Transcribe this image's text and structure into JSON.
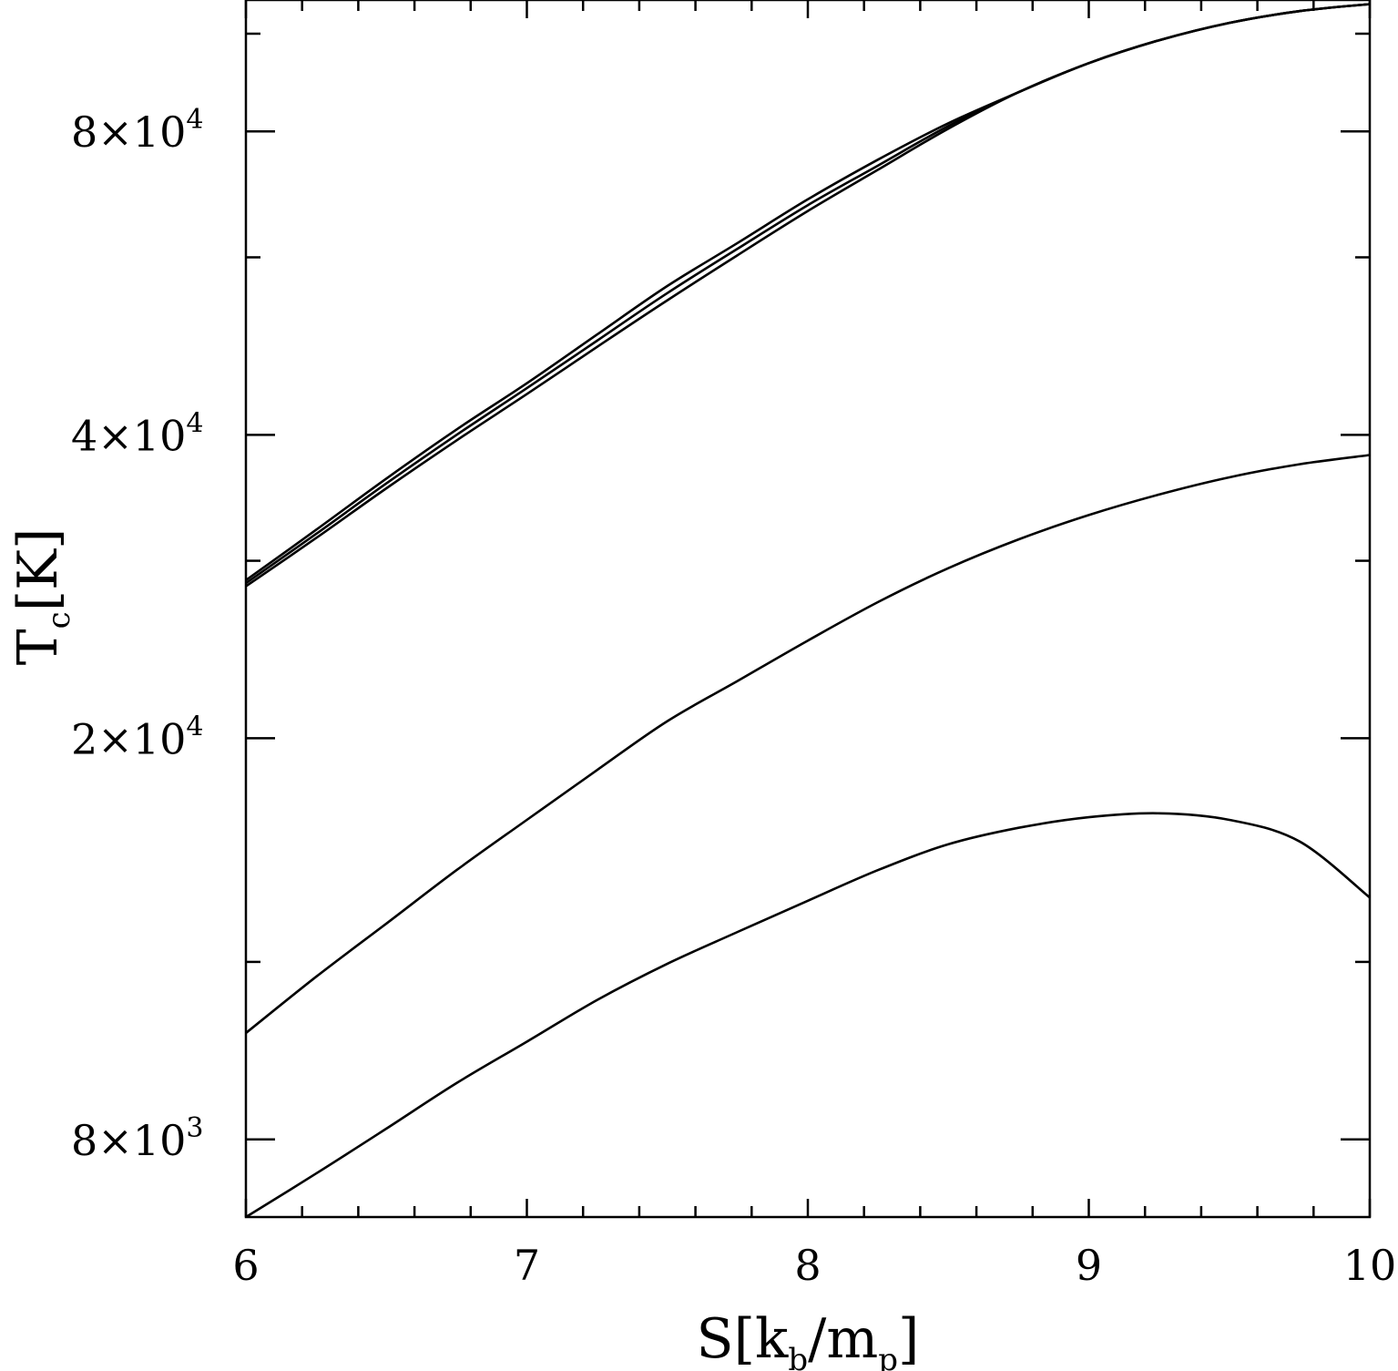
{
  "chart_data": {
    "type": "line",
    "title": "",
    "xlabel": {
      "main": "S[k",
      "sub1": "b",
      "mid": "/m",
      "sub2": "p",
      "end": "]"
    },
    "ylabel": {
      "main": "T",
      "sub": "c",
      "end": "[K]"
    },
    "xlim": [
      6,
      10
    ],
    "ylim": [
      6700,
      108000
    ],
    "yscale": "log",
    "grid": false,
    "x_tick_labels": [
      {
        "value": 6,
        "label": "6"
      },
      {
        "value": 7,
        "label": "7"
      },
      {
        "value": 8,
        "label": "8"
      },
      {
        "value": 9,
        "label": "9"
      },
      {
        "value": 10,
        "label": "10"
      }
    ],
    "x_minor_ticks": [
      6.2,
      6.4,
      6.6,
      6.8,
      7.2,
      7.4,
      7.6,
      7.8,
      8.2,
      8.4,
      8.6,
      8.8,
      9.2,
      9.4,
      9.6,
      9.8
    ],
    "y_tick_labels": [
      {
        "value": 8000,
        "base": "8×10",
        "exp": "3"
      },
      {
        "value": 20000,
        "base": "2×10",
        "exp": "4"
      },
      {
        "value": 40000,
        "base": "4×10",
        "exp": "4"
      },
      {
        "value": 80000,
        "base": "8×10",
        "exp": "4"
      }
    ],
    "y_unlabeled_ticks": [
      12000,
      30000,
      60000,
      100000
    ],
    "series": [
      {
        "x": [
          6.0,
          6.25,
          6.5,
          6.75,
          7.0,
          7.25,
          7.5,
          7.75,
          8.0,
          8.25,
          8.5,
          8.75,
          9.0,
          9.25,
          9.5,
          9.75,
          10.0
        ],
        "y": [
          28700,
          32200,
          36200,
          40500,
          45000,
          50300,
          56200,
          62000,
          68500,
          75000,
          81500,
          87500,
          93500,
          98500,
          102500,
          105300,
          107000
        ]
      },
      {
        "x": [
          6.0,
          6.25,
          6.5,
          6.75,
          7.0,
          7.25,
          7.5,
          7.75,
          8.0,
          8.25,
          8.5,
          8.75,
          9.0,
          9.25,
          9.5,
          9.75,
          10.0
        ],
        "y": [
          28500,
          31900,
          35800,
          40000,
          44500,
          49600,
          55300,
          61200,
          67600,
          74000,
          81000,
          87500,
          93500,
          98500,
          102500,
          105300,
          107000
        ]
      },
      {
        "x": [
          6.0,
          6.25,
          6.5,
          6.75,
          7.0,
          7.25,
          7.5,
          7.75,
          8.0,
          8.25,
          8.5,
          8.75,
          9.0,
          9.25,
          9.5,
          9.75,
          10.0
        ],
        "y": [
          28300,
          31600,
          35400,
          39500,
          43900,
          48900,
          54400,
          60300,
          66700,
          73300,
          80500,
          87500,
          93500,
          98500,
          102500,
          105300,
          107000
        ]
      },
      {
        "x": [
          6.0,
          6.25,
          6.5,
          6.75,
          7.0,
          7.25,
          7.5,
          7.75,
          8.0,
          8.25,
          8.5,
          8.75,
          9.0,
          9.25,
          9.5,
          9.75,
          10.0
        ],
        "y": [
          10200,
          11600,
          13100,
          14800,
          16600,
          18600,
          20800,
          22800,
          25000,
          27300,
          29500,
          31500,
          33300,
          34900,
          36300,
          37400,
          38200
        ]
      },
      {
        "x": [
          6.0,
          6.25,
          6.5,
          6.75,
          7.0,
          7.25,
          7.5,
          7.75,
          8.0,
          8.25,
          8.5,
          8.75,
          9.0,
          9.25,
          9.5,
          9.75,
          10.0
        ],
        "y": [
          6700,
          7400,
          8200,
          9100,
          10000,
          11000,
          11950,
          12850,
          13800,
          14800,
          15700,
          16300,
          16700,
          16850,
          16600,
          15800,
          13900
        ]
      }
    ]
  }
}
